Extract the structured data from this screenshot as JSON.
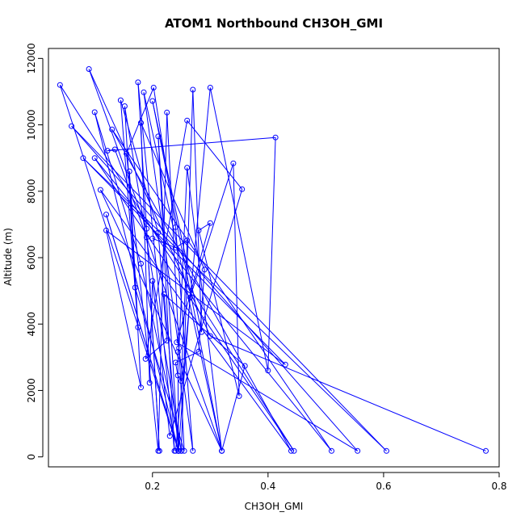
{
  "chart_data": {
    "type": "line",
    "title": "ATOM1 Northbound CH3OH_GMI",
    "xlabel": "CH3OH_GMI",
    "ylabel": "Altitude (m)",
    "xlim": [
      0.02,
      0.8
    ],
    "ylim": [
      -300,
      12300
    ],
    "xticks": [
      0.2,
      0.4,
      0.6,
      0.8
    ],
    "yticks": [
      0,
      2000,
      4000,
      6000,
      8000,
      10000,
      12000
    ],
    "xtick_labels": [
      "0.2",
      "0.4",
      "0.6",
      "0.8"
    ],
    "ytick_labels": [
      "0",
      "2000",
      "4000",
      "6000",
      "8000",
      "10000",
      "12000"
    ],
    "grid": false,
    "color": "#0000ff",
    "marker": "open-circle",
    "series": [
      {
        "points": [
          [
            0.777,
            180
          ],
          [
            0.3,
            3640
          ],
          [
            0.09,
            11680
          ],
          [
            0.19,
            6870
          ],
          [
            0.212,
            180
          ],
          [
            0.175,
            11280
          ],
          [
            0.238,
            180
          ],
          [
            0.21,
            9650
          ],
          [
            0.245,
            180
          ],
          [
            0.12,
            7300
          ],
          [
            0.245,
            180
          ],
          [
            0.1,
            10380
          ],
          [
            0.18,
            5820
          ],
          [
            0.25,
            180
          ],
          [
            0.152,
            10560
          ],
          [
            0.17,
            5100
          ],
          [
            0.255,
            180
          ],
          [
            0.225,
            10370
          ],
          [
            0.21,
            180
          ],
          [
            0.155,
            9130
          ],
          [
            0.202,
            11120
          ],
          [
            0.24,
            6920
          ],
          [
            0.27,
            180
          ],
          [
            0.185,
            10980
          ],
          [
            0.32,
            180
          ],
          [
            0.2,
            10720
          ],
          [
            0.285,
            3760
          ],
          [
            0.27,
            11060
          ],
          [
            0.25,
            180
          ],
          [
            0.24,
            180
          ],
          [
            0.3,
            11120
          ],
          [
            0.4,
            2600
          ],
          [
            0.413,
            9620
          ],
          [
            0.122,
            9220
          ],
          [
            0.135,
            9260
          ],
          [
            0.19,
            6610
          ],
          [
            0.32,
            180
          ],
          [
            0.26,
            8710
          ],
          [
            0.246,
            3280
          ],
          [
            0.244,
            3160
          ],
          [
            0.245,
            180
          ],
          [
            0.22,
            4900
          ],
          [
            0.36,
            2740
          ],
          [
            0.32,
            180
          ],
          [
            0.11,
            8040
          ],
          [
            0.44,
            180
          ],
          [
            0.13,
            9860
          ],
          [
            0.51,
            180
          ],
          [
            0.1,
            9000
          ],
          [
            0.445,
            180
          ],
          [
            0.04,
            11200
          ],
          [
            0.245,
            180
          ],
          [
            0.265,
            4800
          ],
          [
            0.34,
            8840
          ],
          [
            0.35,
            1830
          ],
          [
            0.28,
            6820
          ],
          [
            0.3,
            7040
          ],
          [
            0.242,
            3450
          ],
          [
            0.555,
            180
          ],
          [
            0.06,
            9960
          ],
          [
            0.605,
            180
          ],
          [
            0.08,
            9000
          ],
          [
            0.43,
            2780
          ],
          [
            0.12,
            6820
          ],
          [
            0.18,
            2090
          ],
          [
            0.16,
            8600
          ],
          [
            0.175,
            3900
          ],
          [
            0.145,
            10740
          ],
          [
            0.21,
            6760
          ],
          [
            0.225,
            3500
          ],
          [
            0.188,
            2950
          ],
          [
            0.26,
            10130
          ],
          [
            0.355,
            8060
          ],
          [
            0.23,
            630
          ],
          [
            0.2,
            5300
          ],
          [
            0.195,
            2230
          ],
          [
            0.18,
            10060
          ],
          [
            0.29,
            5640
          ],
          [
            0.28,
            3170
          ],
          [
            0.24,
            2840
          ],
          [
            0.244,
            2450
          ],
          [
            0.25,
            2280
          ],
          [
            0.26,
            6520
          ],
          [
            0.24,
            6300
          ],
          [
            0.2,
            6580
          ]
        ]
      }
    ]
  }
}
